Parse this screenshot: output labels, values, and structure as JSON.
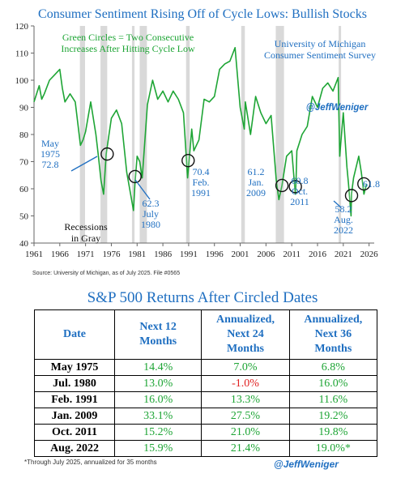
{
  "chart_data": {
    "type": "line",
    "title": "Consumer Sentiment Rising Off of Cycle Lows: Bullish Stocks",
    "ylim": [
      40,
      120
    ],
    "yticks": [
      40,
      50,
      60,
      70,
      80,
      90,
      100,
      110,
      120
    ],
    "xlim": [
      1961,
      2027
    ],
    "xticks": [
      1961,
      1966,
      1971,
      1976,
      1981,
      1986,
      1991,
      1996,
      2001,
      2006,
      2011,
      2016,
      2021,
      2026
    ],
    "series": [
      {
        "name": "University of Michigan Consumer Sentiment Survey",
        "color": "#1ea535",
        "points": [
          [
            1961,
            92
          ],
          [
            1962,
            98
          ],
          [
            1962.5,
            93
          ],
          [
            1963,
            95
          ],
          [
            1964,
            100
          ],
          [
            1965,
            102
          ],
          [
            1966,
            104
          ],
          [
            1966.5,
            97
          ],
          [
            1967,
            92
          ],
          [
            1968,
            95
          ],
          [
            1969,
            92
          ],
          [
            1970,
            76
          ],
          [
            1970.5,
            78
          ],
          [
            1971,
            81
          ],
          [
            1972,
            92
          ],
          [
            1973,
            80
          ],
          [
            1973.5,
            72
          ],
          [
            1974,
            63
          ],
          [
            1974.5,
            58
          ],
          [
            1975,
            72.8
          ],
          [
            1976,
            86
          ],
          [
            1977,
            89
          ],
          [
            1978,
            84
          ],
          [
            1979,
            66
          ],
          [
            1980.3,
            52
          ],
          [
            1980.6,
            62.3
          ],
          [
            1981,
            72
          ],
          [
            1981.5,
            70
          ],
          [
            1982,
            64
          ],
          [
            1983,
            91
          ],
          [
            1984,
            100
          ],
          [
            1985,
            93
          ],
          [
            1986,
            96
          ],
          [
            1987,
            92
          ],
          [
            1988,
            96
          ],
          [
            1989,
            93
          ],
          [
            1990,
            88
          ],
          [
            1990.8,
            64
          ],
          [
            1991.1,
            70.4
          ],
          [
            1991.6,
            82
          ],
          [
            1992,
            74
          ],
          [
            1993,
            78
          ],
          [
            1994,
            93
          ],
          [
            1995,
            92
          ],
          [
            1996,
            94
          ],
          [
            1997,
            104
          ],
          [
            1998,
            106
          ],
          [
            1999,
            107
          ],
          [
            2000,
            112
          ],
          [
            2001,
            90
          ],
          [
            2001.8,
            82
          ],
          [
            2002,
            92
          ],
          [
            2003,
            80
          ],
          [
            2004,
            94
          ],
          [
            2005,
            88
          ],
          [
            2006,
            84
          ],
          [
            2007,
            87
          ],
          [
            2008,
            63
          ],
          [
            2008.5,
            56
          ],
          [
            2009.1,
            61.2
          ],
          [
            2010,
            72
          ],
          [
            2011,
            74
          ],
          [
            2011.7,
            58
          ],
          [
            2011.8,
            60.8
          ],
          [
            2012,
            74
          ],
          [
            2013,
            80
          ],
          [
            2014,
            83
          ],
          [
            2015,
            94
          ],
          [
            2016,
            90
          ],
          [
            2017,
            97
          ],
          [
            2018,
            99
          ],
          [
            2019,
            96
          ],
          [
            2020,
            101
          ],
          [
            2020.3,
            72
          ],
          [
            2021,
            88
          ],
          [
            2021.7,
            68
          ],
          [
            2022,
            62
          ],
          [
            2022.5,
            50
          ],
          [
            2022.6,
            58.2
          ],
          [
            2023,
            64
          ],
          [
            2024,
            72
          ],
          [
            2024.5,
            66
          ],
          [
            2025,
            58
          ],
          [
            2025.5,
            61.8
          ]
        ]
      }
    ],
    "recessions": [
      [
        1969.9,
        1970.9
      ],
      [
        1973.9,
        1975.2
      ],
      [
        1980.0,
        1980.5
      ],
      [
        1981.5,
        1982.9
      ],
      [
        1990.5,
        1991.2
      ],
      [
        2001.2,
        2001.9
      ],
      [
        2007.9,
        2009.5
      ],
      [
        2020.1,
        2020.4
      ]
    ],
    "circled": [
      {
        "x": 1975.2,
        "y": 72.8,
        "label": "May\n1975\n72.8"
      },
      {
        "x": 1980.6,
        "y": 64.5,
        "label": "62.3\nJuly\n1980"
      },
      {
        "x": 1990.9,
        "y": 70.4,
        "label": "70.4\nFeb.\n1991"
      },
      {
        "x": 2009.1,
        "y": 61.2,
        "label": "61.2\nJan.\n2009"
      },
      {
        "x": 2011.7,
        "y": 60.8,
        "label": "60.8\nOct.\n2011"
      },
      {
        "x": 2022.6,
        "y": 57.5,
        "label": "58.2\nAug.\n2022"
      },
      {
        "x": 2025.0,
        "y": 61.8,
        "label": "61.8"
      }
    ],
    "annotations": {
      "green_note": "Green Circles = Two Consecutive\nIncreases After Hitting Cycle Low",
      "survey_note": "University of Michigan\nConsumer Sentiment Survey",
      "handle": "@JeffWeniger",
      "recessions_note": "Recessions\nin Gray"
    }
  },
  "source": "Source: University of Michigan, as of July 2025. File #0565",
  "table": {
    "title": "S&P 500 Returns After Circled Dates",
    "headers": [
      "Date",
      "Next 12\nMonths",
      "Annualized,\nNext 24\nMonths",
      "Annualized,\nNext 36\nMonths"
    ],
    "rows": [
      {
        "date": "May 1975",
        "c1": "14.4%",
        "c2": "7.0%",
        "c3": "6.8%"
      },
      {
        "date": "Jul. 1980",
        "c1": "13.0%",
        "c2": "-1.0%",
        "c3": "16.0%"
      },
      {
        "date": "Feb. 1991",
        "c1": "16.0%",
        "c2": "13.3%",
        "c3": "11.6%"
      },
      {
        "date": "Jan. 2009",
        "c1": "33.1%",
        "c2": "27.5%",
        "c3": "19.2%"
      },
      {
        "date": "Oct. 2011",
        "c1": "15.2%",
        "c2": "21.0%",
        "c3": "19.8%"
      },
      {
        "date": "Aug. 2022",
        "c1": "15.9%",
        "c2": "21.4%",
        "c3": "19.0%*"
      }
    ],
    "negative_color": "#e02020",
    "positive_color": "#1ea535"
  },
  "footnote": "*Through July 2025, annualized for 35 months",
  "footer_handle": "@JeffWeniger",
  "colors": {
    "title": "#1f6fc1",
    "line": "#1ea535",
    "recession": "#d9d9d9"
  }
}
